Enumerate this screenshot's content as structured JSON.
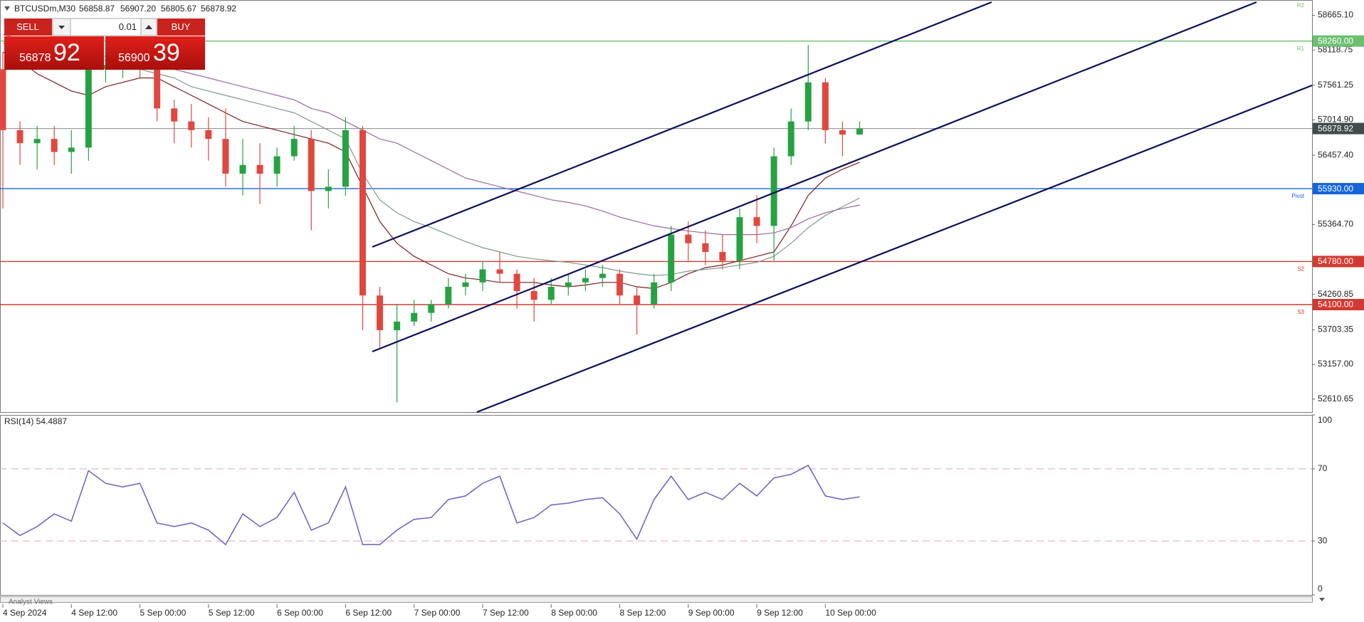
{
  "header": {
    "symbol": "BTCUSDm,M30",
    "ohlc": [
      "56858.87",
      "56907.20",
      "56805.67",
      "56878.92"
    ]
  },
  "trade_panel": {
    "sell_label": "SELL",
    "buy_label": "BUY",
    "volume": "0.01",
    "bid_main": "56878",
    "bid_frac": "92",
    "ask_main": "56900",
    "ask_frac": "39"
  },
  "chart_data": [
    {
      "type": "candlestick",
      "categories": [
        "4 Sep 2024",
        null,
        null,
        null,
        "4 Sep 12:00",
        null,
        null,
        null,
        "5 Sep 00:00",
        null,
        null,
        null,
        "5 Sep 12:00",
        null,
        null,
        null,
        "6 Sep 00:00",
        null,
        null,
        null,
        "6 Sep 12:00",
        null,
        null,
        null,
        "7 Sep 00:00",
        null,
        null,
        null,
        "7 Sep 12:00",
        null,
        null,
        null,
        "8 Sep 00:00",
        null,
        null,
        null,
        "8 Sep 12:00",
        null,
        null,
        null,
        "9 Sep 00:00",
        null,
        null,
        null,
        "9 Sep 12:00",
        null,
        null,
        null,
        "10 Sep 00:00",
        null,
        null
      ],
      "open": [
        57814,
        56853,
        56647,
        56715,
        56509,
        56578,
        57814,
        57882,
        57951,
        57814,
        57196,
        56990,
        56853,
        56715,
        56166,
        56304,
        56166,
        56441,
        56715,
        55892,
        55960,
        56853,
        54244,
        53695,
        53832,
        53969,
        54107,
        54381,
        54450,
        54656,
        54587,
        54313,
        54175,
        54381,
        54450,
        54519,
        54587,
        54244,
        54107,
        54450,
        55205,
        55068,
        54931,
        54793,
        55480,
        55342,
        56441,
        56990,
        57608,
        56853,
        56784
      ],
      "high": [
        58088,
        56990,
        56921,
        56921,
        56853,
        58157,
        58157,
        58157,
        58198,
        57882,
        57333,
        57265,
        57059,
        57196,
        56715,
        56647,
        56578,
        56921,
        56853,
        56235,
        57059,
        56921,
        54381,
        54107,
        54175,
        54175,
        54519,
        54587,
        54793,
        54931,
        54656,
        54519,
        54519,
        54587,
        54656,
        54725,
        54656,
        54381,
        54587,
        55342,
        55411,
        55274,
        55205,
        55617,
        55823,
        56578,
        57196,
        58198,
        57677,
        56990,
        56990
      ],
      "low": [
        55617,
        56304,
        56235,
        56304,
        56166,
        56372,
        57608,
        57677,
        57677,
        56990,
        56647,
        56578,
        56372,
        55960,
        55823,
        55686,
        55960,
        56372,
        55274,
        55617,
        55823,
        53695,
        53420,
        52555,
        53763,
        53832,
        54038,
        54244,
        54313,
        54450,
        54038,
        53832,
        54107,
        54244,
        54313,
        54381,
        54107,
        53626,
        54038,
        54313,
        54793,
        54725,
        54656,
        54656,
        55068,
        54793,
        56304,
        56853,
        56647,
        56441,
        56784
      ],
      "close": [
        56853,
        56647,
        56715,
        56509,
        56578,
        57814,
        57882,
        57951,
        57814,
        57196,
        56990,
        56853,
        56715,
        56166,
        56304,
        56166,
        56441,
        56715,
        55892,
        55960,
        56853,
        54244,
        53695,
        53832,
        53969,
        54107,
        54381,
        54450,
        54656,
        54587,
        54313,
        54175,
        54381,
        54450,
        54519,
        54587,
        54244,
        54107,
        54450,
        55205,
        55068,
        54931,
        54793,
        55480,
        55342,
        56441,
        56990,
        57608,
        56853,
        56784,
        56878.92
      ],
      "up_color": "#27a243",
      "down_color": "#e0483f",
      "ylim": [
        52404,
        58885
      ],
      "yticks": [
        {
          "value": 58665.1,
          "label": "58665.10"
        },
        {
          "value": 58118.75,
          "label": "58118.75"
        },
        {
          "value": 57561.25,
          "label": "57561.25"
        },
        {
          "value": 57014.9,
          "label": "57014.90"
        },
        {
          "value": 56457.4,
          "label": "56457.40"
        },
        {
          "value": 55364.7,
          "label": "55364.70"
        },
        {
          "value": 54260.85,
          "label": "54260.85"
        },
        {
          "value": 53703.35,
          "label": "53703.35"
        },
        {
          "value": 53157,
          "label": "53157.00"
        },
        {
          "value": 52610.65,
          "label": "52610.65"
        }
      ],
      "series": [
        {
          "color": "#7a1f1f",
          "values": [
            58088,
            57951,
            57745,
            57608,
            57471,
            57402,
            57539,
            57608,
            57677,
            57677,
            57539,
            57402,
            57265,
            57127,
            56990,
            56921,
            56853,
            56784,
            56715,
            56647,
            56509,
            55960,
            55411,
            55068,
            54862,
            54725,
            54587,
            54519,
            54491,
            54450,
            54450,
            54450,
            54409,
            54381,
            54409,
            54450,
            54450,
            54381,
            54354,
            54450,
            54587,
            54683,
            54725,
            54793,
            54862,
            54931,
            55342,
            55823,
            56098,
            56235,
            56345
          ]
        },
        {
          "color": "#7f9a8a",
          "values": [
            58363,
            58294,
            58226,
            58157,
            58088,
            58020,
            57951,
            57882,
            57814,
            57745,
            57677,
            57539,
            57471,
            57402,
            57333,
            57265,
            57196,
            57127,
            56990,
            56853,
            56715,
            56166,
            55754,
            55549,
            55411,
            55315,
            55205,
            55095,
            54999,
            54931,
            54862,
            54821,
            54793,
            54766,
            54725,
            54683,
            54629,
            54587,
            54560,
            54574,
            54629,
            54656,
            54683,
            54725,
            54766,
            54862,
            55068,
            55315,
            55507,
            55644,
            55782
          ]
        },
        {
          "color": "#9a6a9a",
          "values": [
            58226,
            58198,
            58157,
            58116,
            58088,
            58061,
            58020,
            57979,
            57951,
            57882,
            57814,
            57745,
            57677,
            57608,
            57539,
            57471,
            57402,
            57333,
            57196,
            57127,
            56990,
            56853,
            56715,
            56647,
            56509,
            56372,
            56235,
            56098,
            56029,
            55960,
            55892,
            55823,
            55754,
            55713,
            55658,
            55576,
            55480,
            55411,
            55342,
            55301,
            55260,
            55232,
            55205,
            55205,
            55205,
            55232,
            55315,
            55452,
            55549,
            55617,
            55672
          ]
        }
      ],
      "levels": [
        {
          "name": "R1",
          "value": 58260,
          "label": "58260.00",
          "color": "#6cc070"
        },
        {
          "name": "Pivot",
          "value": 55930,
          "label": "55930.00",
          "color": "#1565d8"
        },
        {
          "name": "S2",
          "value": 54780,
          "label": "54780.00",
          "color": "#d03a32"
        },
        {
          "name": "S3",
          "value": 54100,
          "label": "54100.00",
          "color": "#d03a32"
        }
      ],
      "current_price": {
        "value": 56878.92,
        "color": "#3e4c4c"
      },
      "annotations": [
        "R2"
      ]
    },
    {
      "type": "line",
      "title": "RSI(14) 54.4887",
      "series": [
        {
          "color": "#6a5fc0",
          "values": [
            40,
            33,
            38,
            45,
            41,
            69,
            62,
            60,
            62,
            40,
            38,
            40,
            36,
            28,
            45,
            38,
            43,
            57,
            36,
            40,
            60,
            28,
            28,
            36,
            42,
            43,
            53,
            55,
            62,
            66,
            40,
            43,
            50,
            51,
            53,
            54,
            45,
            31,
            53,
            66,
            53,
            57,
            53,
            62,
            55,
            65,
            67,
            72,
            55,
            53,
            54.4887
          ]
        }
      ],
      "ylim": [
        0,
        100
      ],
      "yticks": [
        0,
        30,
        70,
        100
      ],
      "reference_lines": [
        30,
        70
      ]
    }
  ],
  "footer": {
    "tab": "Analyst Views"
  }
}
